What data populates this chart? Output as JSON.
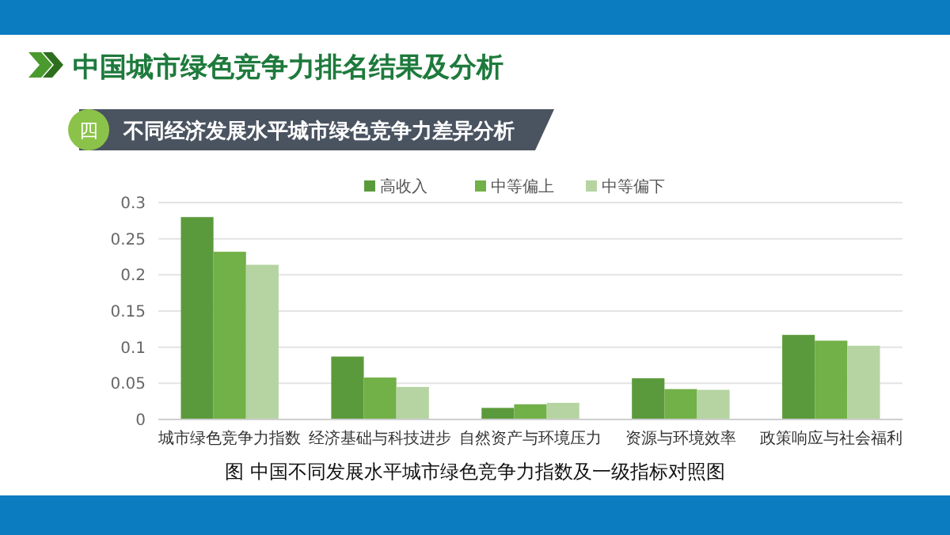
{
  "chart_data": {
    "type": "bar",
    "title": "中国城市绿色竞争力排名结果及分析",
    "subtitle": "不同经济发展水平城市绿色竞争力差异分析",
    "annotations": [
      "四",
      "图  中国不同发展水平城市绿色竞争力指数及一级指标对照图"
    ],
    "categories": [
      "城市绿色竞争力指数",
      "经济基础与科技进步",
      "自然资产与环境压力",
      "资源与环境效率",
      "政策响应与社会福利"
    ],
    "series": [
      {
        "name": "高收入",
        "color": "#5b9a3c",
        "values": [
          0.28,
          0.087,
          0.016,
          0.057,
          0.117
        ]
      },
      {
        "name": "中等偏上",
        "color": "#72b048",
        "values": [
          0.232,
          0.058,
          0.021,
          0.042,
          0.109
        ]
      },
      {
        "name": "中等偏下",
        "color": "#b5d4a2",
        "values": [
          0.214,
          0.045,
          0.023,
          0.041,
          0.102
        ]
      }
    ],
    "ylim": [
      0,
      0.3
    ],
    "yticks": [
      0,
      0.05,
      0.1,
      0.15,
      0.2,
      0.25,
      0.3
    ],
    "grid": "y",
    "legend": "top"
  }
}
